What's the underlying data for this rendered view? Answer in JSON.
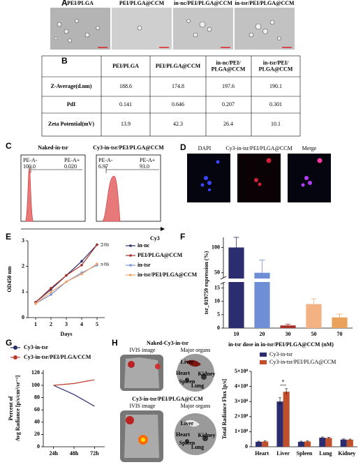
{
  "panel_labels": [
    "A",
    "B",
    "C",
    "D",
    "E",
    "F",
    "G",
    "H"
  ],
  "tem_images": [
    "PEI/PLGA",
    "PEI/PLGA@CCM",
    "in-nc/PEI/PLGA@CCM",
    "in-tsr/PEI/PLGA@CCM"
  ],
  "table": {
    "header": [
      [
        "PEI/PLGA"
      ],
      [
        "PEI/PLGA@CCM"
      ],
      [
        "in-nc/PEI/",
        "PLGA@CCM"
      ],
      [
        "in-tsr/PEI/",
        "PLGA@CCM"
      ]
    ],
    "rows": [
      [
        "Z-Average(d.nm)",
        "188.6",
        "174.8",
        "197.6",
        "190.1"
      ],
      [
        "PdI",
        "0.141",
        "0.646",
        "0.207",
        "0.301"
      ],
      [
        "Zeta Potential(mV)",
        "13.9",
        "42.3",
        "26.4",
        "10.1"
      ]
    ]
  },
  "flow": {
    "axis_label": "Cy3",
    "plots": [
      {
        "title": "Naked-in-tsr",
        "neg_label": "PE-A-",
        "neg_value": "100.0",
        "pos_label": "PE-A+",
        "pos_value": "0.020"
      },
      {
        "title": "Cy3-in-tsr/PEI/PLGA@CCM",
        "neg_label": "PE-A-",
        "neg_value": "6.97",
        "pos_label": "PE-A+",
        "pos_value": "93.0"
      }
    ]
  },
  "fluorescence": [
    "DAPI",
    "Cy3-in-tsr/PEI/PLGA@CCM",
    "Merge"
  ],
  "ivis": {
    "rows": [
      {
        "title": "Naked-Cy3-in-tsr",
        "organs": [
          "Liver",
          "Heart",
          "Spleen",
          "Lung",
          "Kidney"
        ]
      },
      {
        "title": "Cy3-in-tsr/PEI/PLGA@CCM",
        "organs": [
          "Liver",
          "Heart",
          "Spleen",
          "Lung",
          "Kidney"
        ]
      }
    ],
    "image_label": "IVIS image",
    "organs_label": "Major organs"
  },
  "chart_data": [
    {
      "type": "line",
      "x": [
        1,
        2,
        3,
        4,
        5
      ],
      "xlim": [
        0.5,
        5.5
      ],
      "xticks": [
        1,
        2,
        3,
        4,
        5
      ],
      "ylim": [
        0,
        3
      ],
      "yticks": [
        0,
        1,
        2,
        3
      ],
      "x_label": "Days",
      "y_label": "OD450 nm",
      "markers": true,
      "series": [
        {
          "name": "in-nc",
          "color": "#2b2d6e",
          "values": [
            0.6,
            1.1,
            1.65,
            2.2,
            2.85
          ]
        },
        {
          "name": "PEI/PLGA@CCM",
          "color": "#a8322b",
          "values": [
            0.6,
            1.15,
            1.65,
            2.05,
            2.85
          ]
        },
        {
          "name": "in-tsr",
          "color": "#7b93cf",
          "values": [
            0.55,
            0.9,
            1.4,
            1.75,
            2.05
          ]
        },
        {
          "name": "in-tsr/PEI/PLGA@CCM",
          "color": "#f0a46a",
          "values": [
            0.55,
            1.0,
            1.4,
            1.7,
            2.1
          ]
        }
      ],
      "annotations": [
        "ns",
        "ns"
      ]
    },
    {
      "type": "broken-bar",
      "categories": [
        "10",
        "20",
        "30",
        "50",
        "70"
      ],
      "values": [
        100,
        50,
        1,
        9,
        4
      ],
      "errors": [
        20,
        25,
        0.5,
        2,
        1.2
      ],
      "colors": [
        "#2b2d6e",
        "#6e8fd6",
        "#a8322b",
        "#f4b183",
        "#e8a25c"
      ],
      "ylim": [
        0,
        120
      ],
      "ybreak": [
        17,
        40
      ],
      "yticks": [
        0,
        5,
        10,
        15,
        50,
        100
      ],
      "x_label": "in-tsr dose in in-tsr/PEI/PLGA@CCM (nM)",
      "y_label": "tsr_019759 expression (%)"
    },
    {
      "type": "line",
      "categories": [
        "24h",
        "48h",
        "72h"
      ],
      "ylim": [
        0,
        125
      ],
      "yticks": [
        0,
        20,
        40,
        60,
        80,
        100,
        120
      ],
      "y_label": [
        "Percent of",
        "Avg Radiance [p/s/cm²/sr⁻¹]"
      ],
      "markers": false,
      "series": [
        {
          "name": "Cy3-in-tsr",
          "color": "#2b2d6e",
          "values": [
            100,
            85,
            66
          ]
        },
        {
          "name": "Cy3-in-tsr/PEI/PLGA/CCM",
          "color": "#c0392b",
          "values": [
            100,
            103,
            109
          ]
        }
      ]
    },
    {
      "type": "grouped-bar",
      "categories": [
        "Heart",
        "Liver",
        "Spleen",
        "Lung",
        "Kidney"
      ],
      "ylim": [
        0,
        500000000
      ],
      "yticks": [
        0,
        {
          "value": 100000000,
          "label": "1×10⁸"
        },
        {
          "value": 200000000,
          "label": "2×10⁸"
        },
        {
          "value": 300000000,
          "label": "3×10⁸"
        },
        {
          "value": 400000000,
          "label": "4×10⁸"
        },
        {
          "value": 500000000,
          "label": "5×10⁸"
        }
      ],
      "y_label": "Total Radiance Flux [p/s]",
      "series": [
        {
          "name": "Cy3-in-tsr",
          "color": "#2b2d6e",
          "values": [
            33000000,
            300000000,
            33000000,
            60000000,
            48000000
          ],
          "errors": [
            4000000,
            25000000,
            4000000,
            5000000,
            4000000
          ]
        },
        {
          "name": "Cy3-in-tsr/PEI/PLGA@CCM",
          "color": "#c0502b",
          "values": [
            35000000,
            365000000,
            35000000,
            58000000,
            47000000
          ],
          "errors": [
            4000000,
            20000000,
            4000000,
            5000000,
            4000000
          ]
        }
      ],
      "annotations": [
        "*"
      ]
    }
  ]
}
